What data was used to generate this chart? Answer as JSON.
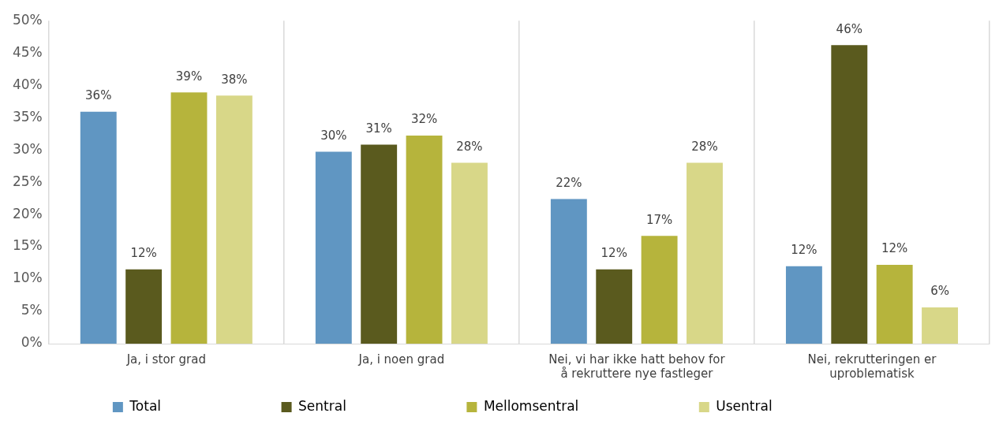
{
  "chart_data": {
    "type": "bar",
    "categories": [
      "Ja, i stor grad",
      "Ja, i noen grad",
      "Nei, vi har ikke hatt behov for\nå rekruttere nye fastleger",
      "Nei, rekrutteringen er\nuproblematisk"
    ],
    "series": [
      {
        "name": "Total",
        "color": "#6096c2",
        "values": [
          35.9,
          29.7,
          22.4,
          12.0
        ],
        "value_labels": [
          "36%",
          "30%",
          "22%",
          "12%"
        ]
      },
      {
        "name": "Sentral",
        "color": "#5a5a1e",
        "values": [
          11.5,
          30.8,
          11.5,
          46.2
        ],
        "value_labels": [
          "12%",
          "31%",
          "12%",
          "46%"
        ]
      },
      {
        "name": "Mellomsentral",
        "color": "#b6b43c",
        "values": [
          38.9,
          32.2,
          16.7,
          12.2
        ],
        "value_labels": [
          "39%",
          "32%",
          "17%",
          "12%"
        ]
      },
      {
        "name": "Usentral",
        "color": "#d8d788",
        "values": [
          38.4,
          28.0,
          28.0,
          5.6
        ],
        "value_labels": [
          "38%",
          "28%",
          "28%",
          "6%"
        ]
      }
    ],
    "ylim": [
      0,
      50
    ],
    "yticks": [
      {
        "value": 0,
        "label": "0%"
      },
      {
        "value": 5,
        "label": "5%"
      },
      {
        "value": 10,
        "label": "10%"
      },
      {
        "value": 15,
        "label": "15%"
      },
      {
        "value": 20,
        "label": "20%"
      },
      {
        "value": 25,
        "label": "25%"
      },
      {
        "value": 30,
        "label": "30%"
      },
      {
        "value": 35,
        "label": "35%"
      },
      {
        "value": 40,
        "label": "40%"
      },
      {
        "value": 45,
        "label": "45%"
      },
      {
        "value": 50,
        "label": "50%"
      }
    ],
    "grid": "x",
    "legend": "bottom"
  }
}
